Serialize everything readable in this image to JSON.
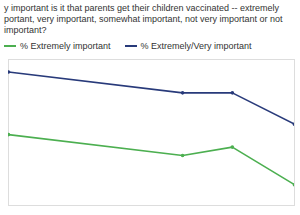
{
  "chart_data": {
    "type": "line",
    "title": "y important is it that parents get their children vaccinated -- extremely portant, very important, somewhat important, not very important or not important?",
    "x": [
      2001,
      2015,
      2019,
      2024
    ],
    "xlim": [
      2001,
      2024
    ],
    "xticks": [],
    "ylim": [
      30,
      100
    ],
    "yticks": [],
    "grid": false,
    "tick_labels": false,
    "marker": "circle",
    "series": [
      {
        "name": "% Extremely important",
        "color": "#4caf50",
        "values": [
          64,
          54,
          58,
          40
        ]
      },
      {
        "name": "% Extremely/Very important",
        "color": "#283a7a",
        "values": [
          94,
          84,
          84,
          69
        ]
      }
    ]
  }
}
